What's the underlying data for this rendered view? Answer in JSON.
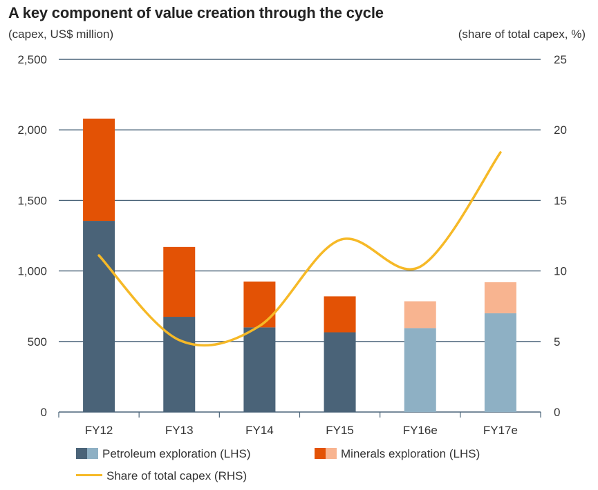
{
  "title": "A key component of value creation through the cycle",
  "left_axis_label": "(capex, US$ million)",
  "right_axis_label": "(share of total capex, %)",
  "colors": {
    "petroleum_actual": "#4a6378",
    "petroleum_estimate": "#8eb0c4",
    "minerals_actual": "#e35205",
    "minerals_estimate": "#f8b490",
    "share_line": "#f6b927",
    "grid": "#4a6378"
  },
  "legend": {
    "petroleum": "Petroleum exploration (LHS)",
    "minerals": "Minerals exploration (LHS)",
    "share": "Share of total capex (RHS)"
  },
  "chart_data": {
    "type": "bar",
    "stacked": true,
    "categories": [
      "FY12",
      "FY13",
      "FY14",
      "FY15",
      "FY16e",
      "FY17e"
    ],
    "estimate_categories": [
      "FY16e",
      "FY17e"
    ],
    "series": [
      {
        "name": "Petroleum exploration (LHS)",
        "axis": "left",
        "values": [
          1355,
          675,
          600,
          565,
          595,
          700
        ]
      },
      {
        "name": "Minerals exploration (LHS)",
        "axis": "left",
        "values": [
          725,
          495,
          325,
          255,
          190,
          220
        ]
      },
      {
        "name": "Share of total capex (RHS)",
        "axis": "right",
        "type": "line",
        "values": [
          11.1,
          5.1,
          6.1,
          12.2,
          10.3,
          18.4
        ]
      }
    ],
    "y_left": {
      "range": [
        0,
        2500
      ],
      "ticks": [
        0,
        500,
        1000,
        1500,
        2000,
        2500
      ],
      "tick_labels": [
        "0",
        "500",
        "1,000",
        "1,500",
        "2,000",
        "2,500"
      ]
    },
    "y_right": {
      "range": [
        0,
        25
      ],
      "ticks": [
        0,
        5,
        10,
        15,
        20,
        25
      ],
      "tick_labels": [
        "0",
        "5",
        "10",
        "15",
        "20",
        "25"
      ]
    },
    "grid": true,
    "legend_position": "bottom"
  }
}
